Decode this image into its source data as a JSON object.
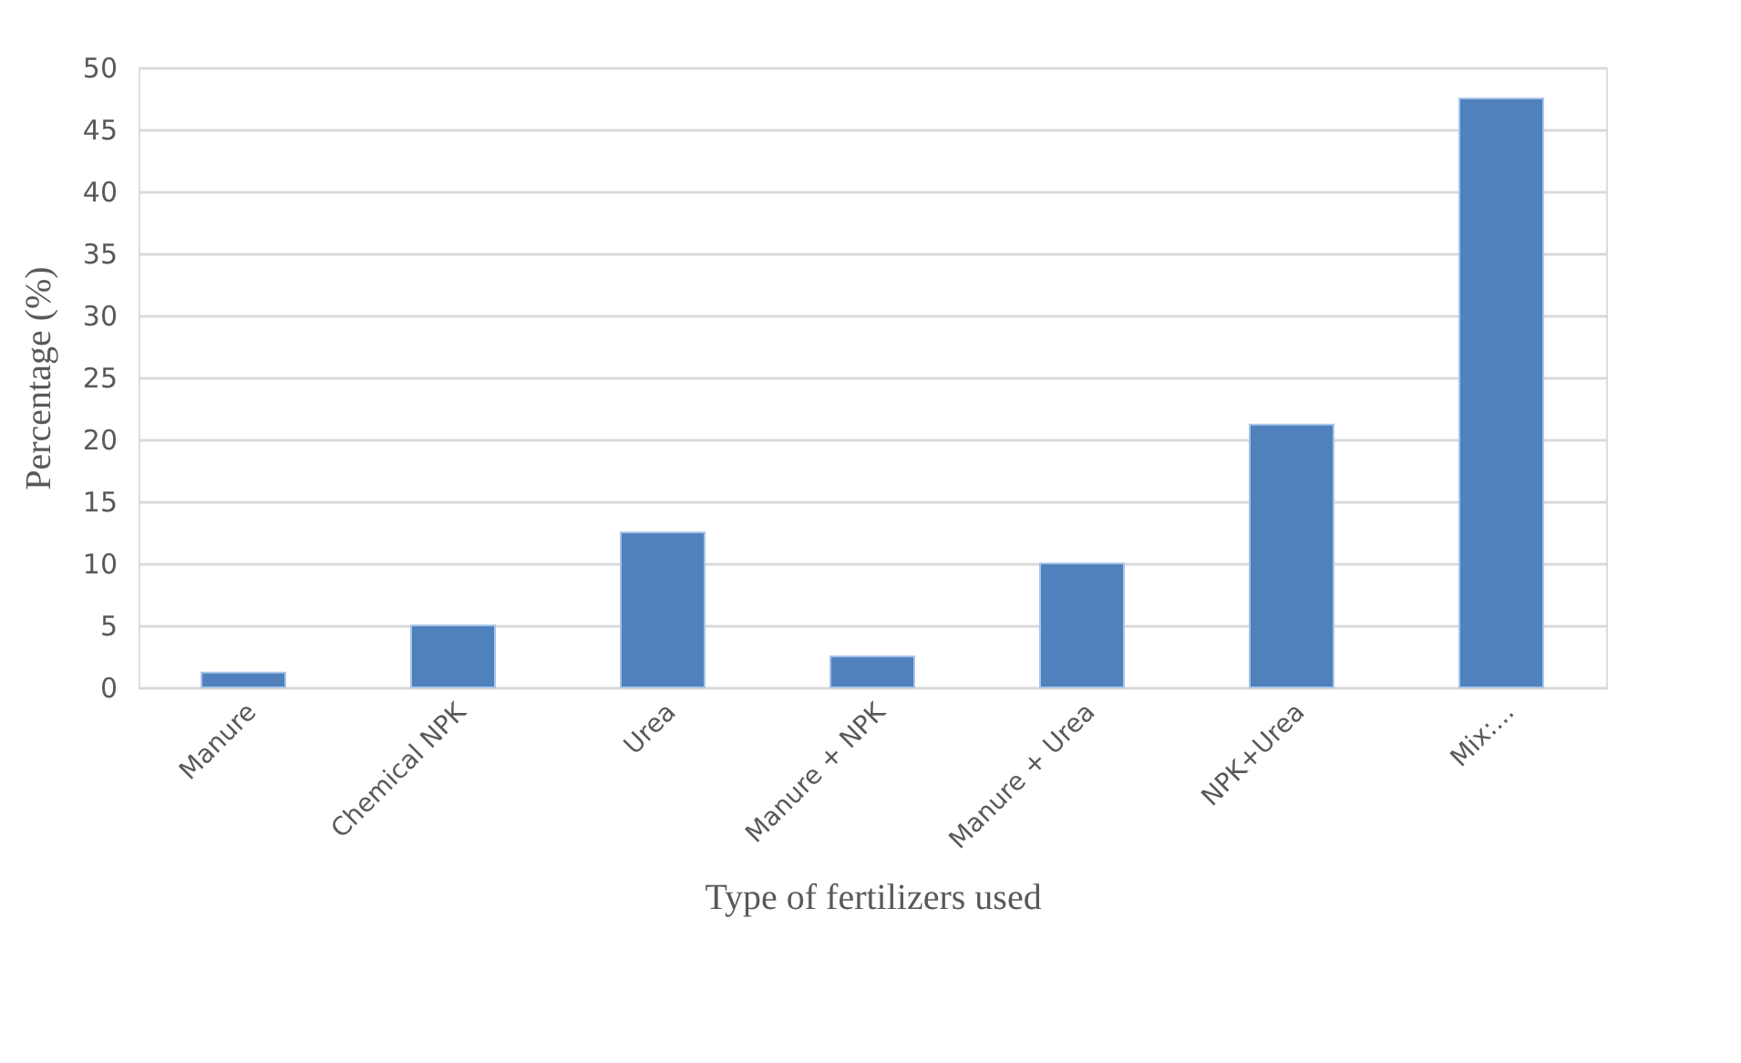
{
  "chart_data": {
    "type": "bar",
    "xlabel": "Type of fertilizers used",
    "ylabel": "Percentage (%)",
    "categories": [
      "Manure",
      "Chemical NPK",
      "Urea",
      "Manure + NPK",
      "Manure + Urea",
      "NPK+Urea",
      "Mix:..."
    ],
    "values": [
      1.2,
      5,
      12.5,
      2.5,
      10,
      21.2,
      47.5
    ],
    "color": "#4f81bd",
    "ylim": [
      0,
      50
    ],
    "yticks": [
      0,
      5,
      10,
      15,
      20,
      25,
      30,
      35,
      40,
      45,
      50
    ],
    "grid": "y"
  }
}
